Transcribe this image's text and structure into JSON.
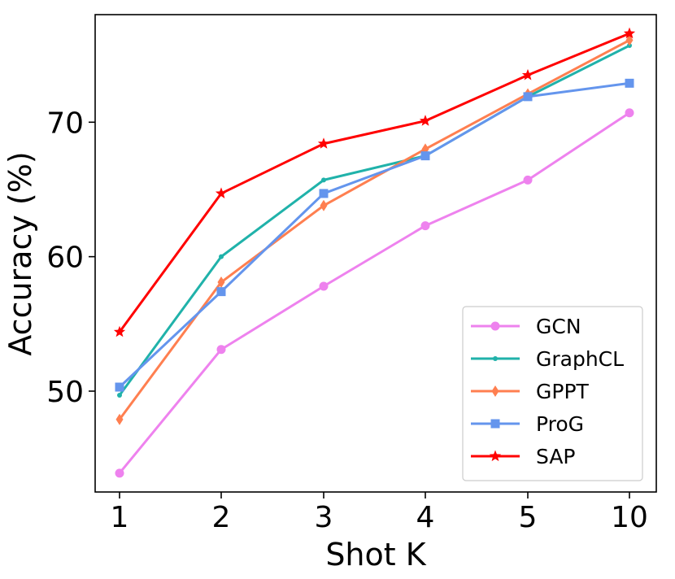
{
  "chart_data": {
    "type": "line",
    "title": "",
    "xlabel": "Shot K",
    "ylabel": "Accuracy (%)",
    "categories": [
      "1",
      "2",
      "3",
      "4",
      "5",
      "10"
    ],
    "ylim": [
      42.5,
      78
    ],
    "yticks": [
      50,
      60,
      70
    ],
    "grid": false,
    "legend_position": "lower-right",
    "series": [
      {
        "name": "GCN",
        "color": "#EE82EE",
        "marker": "circle",
        "values": [
          43.9,
          53.1,
          57.8,
          62.3,
          65.7,
          70.7
        ]
      },
      {
        "name": "GraphCL",
        "color": "#20B2AA",
        "marker": "point",
        "values": [
          49.7,
          60.0,
          65.7,
          67.5,
          71.9,
          75.7
        ]
      },
      {
        "name": "GPPT",
        "color": "#FF7F50",
        "marker": "diamond",
        "values": [
          47.9,
          58.1,
          63.8,
          68.0,
          72.1,
          76.1
        ]
      },
      {
        "name": "ProG",
        "color": "#6495ED",
        "marker": "square",
        "values": [
          50.3,
          57.4,
          64.7,
          67.5,
          71.9,
          72.9
        ]
      },
      {
        "name": "SAP",
        "color": "#FF0000",
        "marker": "star",
        "values": [
          54.4,
          64.7,
          68.4,
          70.1,
          73.5,
          76.6
        ]
      }
    ]
  }
}
